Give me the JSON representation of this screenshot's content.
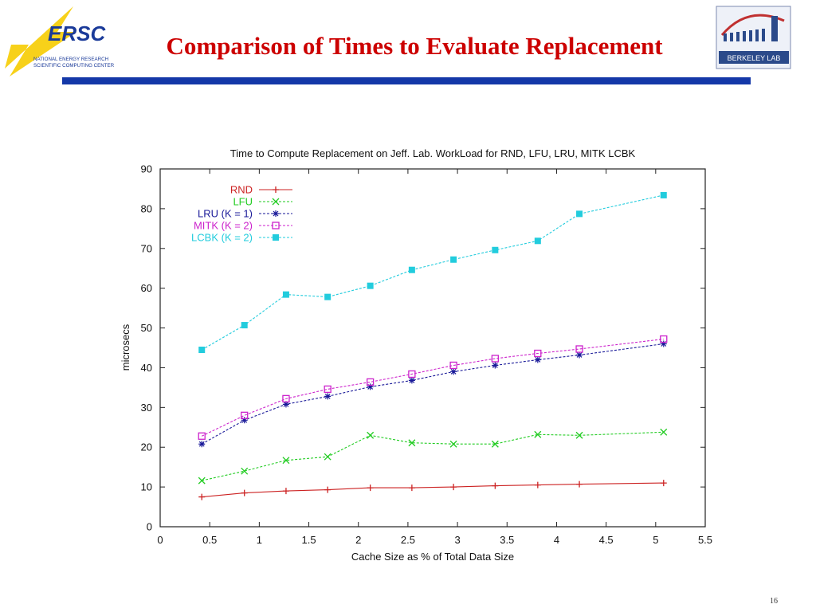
{
  "slide": {
    "title": "Comparison of Times to Evaluate Replacement",
    "page_number": "16",
    "title_color": "#cc0000",
    "bar_color": "#1438a8"
  },
  "nersc_logo": {
    "letters": "ERSC",
    "line1": "NATIONAL ENERGY RESEARCH",
    "line2": "SCIENTIFIC COMPUTING CENTER"
  },
  "lab_logo": {
    "text": "BERKELEY LAB"
  },
  "chart_data": {
    "type": "line",
    "title": "Time to Compute Replacement on Jeff. Lab. WorkLoad for RND, LFU, LRU, MITK  LCBK",
    "xlabel": "Cache Size as % of Total Data Size",
    "ylabel": "microsecs",
    "xlim": [
      0,
      5.5
    ],
    "ylim": [
      0,
      90
    ],
    "xticks": [
      "0",
      "0.5",
      "1",
      "1.5",
      "2",
      "2.5",
      "3",
      "3.5",
      "4",
      "4.5",
      "5",
      "5.5"
    ],
    "yticks": [
      "0",
      "10",
      "20",
      "30",
      "40",
      "50",
      "60",
      "70",
      "80",
      "90"
    ],
    "grid": false,
    "legend_position": "top-left",
    "x": [
      0.42,
      0.85,
      1.27,
      1.69,
      2.12,
      2.54,
      2.96,
      3.38,
      3.81,
      4.23,
      5.08
    ],
    "series": [
      {
        "name": "RND",
        "color": "#cc2222",
        "marker": "plus",
        "dash": "solid",
        "values": [
          7.5,
          8.5,
          9.0,
          9.3,
          9.8,
          9.8,
          10.0,
          10.3,
          10.5,
          10.7,
          11.0
        ]
      },
      {
        "name": "LFU",
        "color": "#22cc22",
        "marker": "x",
        "dash": "dashed",
        "values": [
          11.6,
          14.0,
          16.7,
          17.6,
          23.0,
          21.1,
          20.8,
          20.8,
          23.2,
          23.0,
          23.8
        ]
      },
      {
        "name": "LRU (K = 1)",
        "color": "#1a1a99",
        "marker": "star",
        "dash": "dashed",
        "values": [
          20.8,
          26.8,
          30.8,
          32.8,
          35.2,
          36.8,
          39.0,
          40.6,
          42.0,
          43.2,
          46.0
        ]
      },
      {
        "name": "MITK (K = 2)",
        "color": "#cc22cc",
        "marker": "square-open",
        "dash": "dashed",
        "values": [
          22.8,
          28.0,
          32.2,
          34.6,
          36.4,
          38.4,
          40.6,
          42.3,
          43.6,
          44.7,
          47.2
        ]
      },
      {
        "name": "LCBK (K = 2)",
        "color": "#22ccdd",
        "marker": "square-filled",
        "dash": "dashed",
        "values": [
          44.5,
          50.7,
          58.4,
          57.8,
          60.6,
          64.6,
          67.2,
          69.6,
          71.9,
          78.7,
          83.4
        ]
      }
    ]
  }
}
